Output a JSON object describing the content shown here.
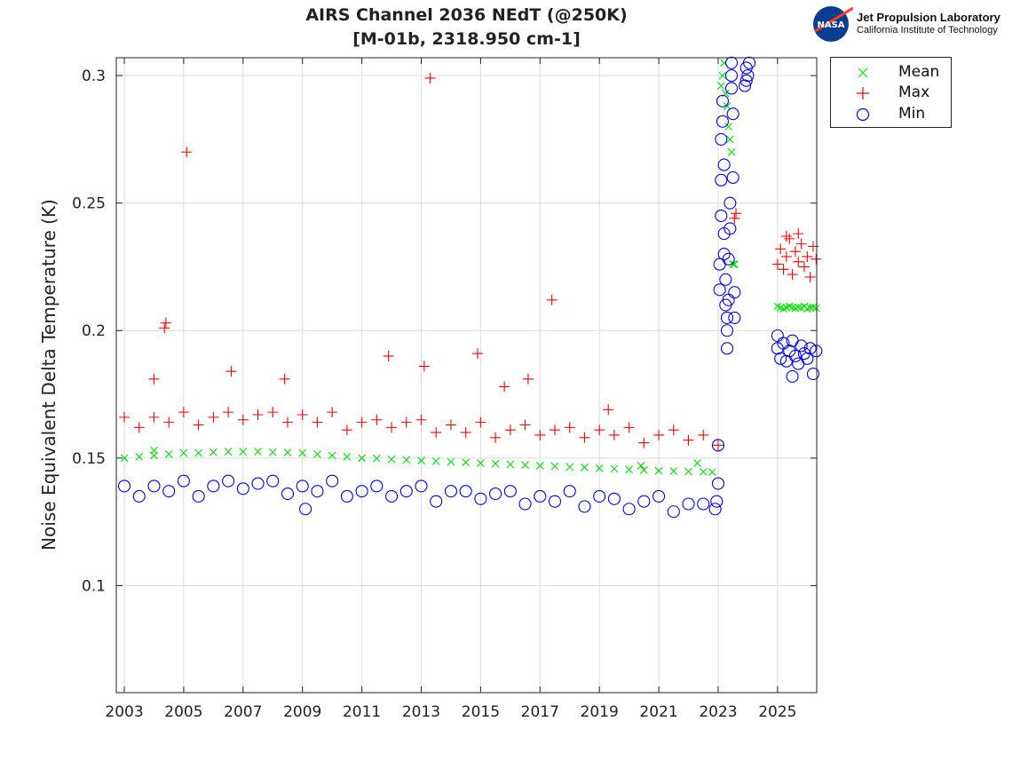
{
  "logo": {
    "line1": "Jet Propulsion Laboratory",
    "line2": "California Institute of Technology",
    "badge": "NASA"
  },
  "chart_data": {
    "type": "scatter",
    "title": [
      "AIRS Channel 2036 NEdT (@250K)",
      "[M-01b, 2318.950 cm-1]"
    ],
    "xlabel": "",
    "ylabel": "Noise Equivalent Delta Temperature (K)",
    "xlim": [
      2002.73,
      2026.32
    ],
    "ylim": [
      0.058,
      0.307
    ],
    "xticks": [
      2003,
      2005,
      2007,
      2009,
      2011,
      2013,
      2015,
      2017,
      2019,
      2021,
      2023,
      2025
    ],
    "xtick_labels": [
      "2003",
      "2005",
      "2007",
      "2009",
      "2011",
      "2013",
      "2015",
      "2017",
      "2019",
      "2021",
      "2023",
      "2025"
    ],
    "yticks": [
      0.1,
      0.15,
      0.2,
      0.25,
      0.3
    ],
    "ytick_labels": [
      "0.1",
      "0.15",
      "0.2",
      "0.25",
      "0.3"
    ],
    "grid": true,
    "legend": "outside-top-right",
    "series": [
      {
        "name": "Mean",
        "marker": "x",
        "color": "#00e000",
        "points": [
          [
            2003.0,
            0.15
          ],
          [
            2003.5,
            0.1505
          ],
          [
            2004.0,
            0.151
          ],
          [
            2004.5,
            0.1515
          ],
          [
            2005.0,
            0.152
          ],
          [
            2005.5,
            0.152
          ],
          [
            2006.0,
            0.1523
          ],
          [
            2006.5,
            0.1525
          ],
          [
            2007.0,
            0.1525
          ],
          [
            2007.5,
            0.1525
          ],
          [
            2008.0,
            0.1523
          ],
          [
            2008.5,
            0.1522
          ],
          [
            2009.0,
            0.152
          ],
          [
            2009.5,
            0.1515
          ],
          [
            2010.0,
            0.151
          ],
          [
            2010.5,
            0.1505
          ],
          [
            2011.0,
            0.15
          ],
          [
            2011.5,
            0.1498
          ],
          [
            2012.0,
            0.1495
          ],
          [
            2012.5,
            0.1493
          ],
          [
            2013.0,
            0.149
          ],
          [
            2013.5,
            0.1488
          ],
          [
            2014.0,
            0.1485
          ],
          [
            2014.5,
            0.1483
          ],
          [
            2015.0,
            0.148
          ],
          [
            2015.5,
            0.1478
          ],
          [
            2016.0,
            0.1475
          ],
          [
            2016.5,
            0.1473
          ],
          [
            2017.0,
            0.147
          ],
          [
            2017.5,
            0.1468
          ],
          [
            2018.0,
            0.1465
          ],
          [
            2018.5,
            0.1463
          ],
          [
            2019.0,
            0.146
          ],
          [
            2019.5,
            0.1458
          ],
          [
            2020.0,
            0.1455
          ],
          [
            2020.5,
            0.1453
          ],
          [
            2021.0,
            0.145
          ],
          [
            2021.5,
            0.1449
          ],
          [
            2022.0,
            0.1447
          ],
          [
            2022.5,
            0.1446
          ],
          [
            2022.8,
            0.1445
          ],
          [
            2020.4,
            0.147
          ],
          [
            2022.3,
            0.148
          ],
          [
            2004.0,
            0.153
          ],
          [
            2023.1,
            0.296
          ],
          [
            2023.15,
            0.3
          ],
          [
            2023.2,
            0.305
          ],
          [
            2023.25,
            0.293
          ],
          [
            2023.3,
            0.288
          ],
          [
            2023.35,
            0.28
          ],
          [
            2023.4,
            0.275
          ],
          [
            2023.45,
            0.27
          ],
          [
            2023.5,
            0.226
          ],
          [
            2023.55,
            0.226
          ],
          [
            2025.0,
            0.2095
          ],
          [
            2025.1,
            0.209
          ],
          [
            2025.2,
            0.2085
          ],
          [
            2025.3,
            0.209
          ],
          [
            2025.4,
            0.2095
          ],
          [
            2025.5,
            0.209
          ],
          [
            2025.6,
            0.2088
          ],
          [
            2025.7,
            0.2092
          ],
          [
            2025.8,
            0.209
          ],
          [
            2025.9,
            0.2095
          ],
          [
            2026.0,
            0.2085
          ],
          [
            2026.1,
            0.209
          ],
          [
            2026.2,
            0.2092
          ],
          [
            2026.3,
            0.2088
          ]
        ]
      },
      {
        "name": "Max",
        "marker": "+",
        "color": "#ff0000",
        "points": [
          [
            2003.0,
            0.166
          ],
          [
            2003.5,
            0.162
          ],
          [
            2004.0,
            0.166
          ],
          [
            2004.5,
            0.164
          ],
          [
            2005.0,
            0.168
          ],
          [
            2005.5,
            0.163
          ],
          [
            2006.0,
            0.166
          ],
          [
            2006.5,
            0.168
          ],
          [
            2007.0,
            0.165
          ],
          [
            2007.5,
            0.167
          ],
          [
            2008.0,
            0.168
          ],
          [
            2008.5,
            0.164
          ],
          [
            2009.0,
            0.167
          ],
          [
            2009.5,
            0.164
          ],
          [
            2010.0,
            0.168
          ],
          [
            2010.5,
            0.161
          ],
          [
            2011.0,
            0.164
          ],
          [
            2011.5,
            0.165
          ],
          [
            2012.0,
            0.162
          ],
          [
            2012.5,
            0.164
          ],
          [
            2013.0,
            0.165
          ],
          [
            2013.5,
            0.16
          ],
          [
            2014.0,
            0.163
          ],
          [
            2014.5,
            0.16
          ],
          [
            2015.0,
            0.164
          ],
          [
            2015.5,
            0.158
          ],
          [
            2016.0,
            0.161
          ],
          [
            2016.5,
            0.163
          ],
          [
            2017.0,
            0.159
          ],
          [
            2017.5,
            0.161
          ],
          [
            2018.0,
            0.162
          ],
          [
            2018.5,
            0.158
          ],
          [
            2019.0,
            0.161
          ],
          [
            2019.5,
            0.159
          ],
          [
            2020.0,
            0.162
          ],
          [
            2020.5,
            0.156
          ],
          [
            2021.0,
            0.159
          ],
          [
            2021.5,
            0.161
          ],
          [
            2022.0,
            0.157
          ],
          [
            2022.5,
            0.159
          ],
          [
            2004.0,
            0.181
          ],
          [
            2004.35,
            0.201
          ],
          [
            2004.4,
            0.203
          ],
          [
            2005.1,
            0.27
          ],
          [
            2006.6,
            0.184
          ],
          [
            2008.4,
            0.181
          ],
          [
            2011.9,
            0.19
          ],
          [
            2013.1,
            0.186
          ],
          [
            2013.3,
            0.299
          ],
          [
            2014.9,
            0.191
          ],
          [
            2015.8,
            0.178
          ],
          [
            2016.6,
            0.181
          ],
          [
            2017.4,
            0.212
          ],
          [
            2019.3,
            0.169
          ],
          [
            2023.55,
            0.244
          ],
          [
            2023.6,
            0.246
          ],
          [
            2023.0,
            0.155
          ],
          [
            2025.0,
            0.226
          ],
          [
            2025.1,
            0.232
          ],
          [
            2025.2,
            0.224
          ],
          [
            2025.3,
            0.229
          ],
          [
            2025.4,
            0.236
          ],
          [
            2025.5,
            0.222
          ],
          [
            2025.6,
            0.231
          ],
          [
            2025.7,
            0.227
          ],
          [
            2025.8,
            0.234
          ],
          [
            2025.9,
            0.225
          ],
          [
            2026.0,
            0.229
          ],
          [
            2026.1,
            0.221
          ],
          [
            2026.2,
            0.233
          ],
          [
            2026.3,
            0.228
          ],
          [
            2025.3,
            0.237
          ],
          [
            2025.7,
            0.238
          ]
        ]
      },
      {
        "name": "Min",
        "marker": "o",
        "color": "#0000ee",
        "points": [
          [
            2003.0,
            0.139
          ],
          [
            2003.5,
            0.135
          ],
          [
            2004.0,
            0.139
          ],
          [
            2004.5,
            0.137
          ],
          [
            2005.0,
            0.141
          ],
          [
            2005.5,
            0.135
          ],
          [
            2006.0,
            0.139
          ],
          [
            2006.5,
            0.141
          ],
          [
            2007.0,
            0.138
          ],
          [
            2007.5,
            0.14
          ],
          [
            2008.0,
            0.141
          ],
          [
            2008.5,
            0.136
          ],
          [
            2009.0,
            0.139
          ],
          [
            2009.5,
            0.137
          ],
          [
            2010.0,
            0.141
          ],
          [
            2010.5,
            0.135
          ],
          [
            2011.0,
            0.137
          ],
          [
            2011.5,
            0.139
          ],
          [
            2012.0,
            0.135
          ],
          [
            2012.5,
            0.137
          ],
          [
            2013.0,
            0.139
          ],
          [
            2013.5,
            0.133
          ],
          [
            2014.0,
            0.137
          ],
          [
            2014.5,
            0.137
          ],
          [
            2015.0,
            0.134
          ],
          [
            2015.5,
            0.136
          ],
          [
            2016.0,
            0.137
          ],
          [
            2016.5,
            0.132
          ],
          [
            2017.0,
            0.135
          ],
          [
            2017.5,
            0.133
          ],
          [
            2018.0,
            0.137
          ],
          [
            2018.5,
            0.131
          ],
          [
            2019.0,
            0.135
          ],
          [
            2019.5,
            0.134
          ],
          [
            2020.0,
            0.13
          ],
          [
            2020.5,
            0.133
          ],
          [
            2021.0,
            0.135
          ],
          [
            2021.5,
            0.129
          ],
          [
            2022.0,
            0.132
          ],
          [
            2022.5,
            0.132
          ],
          [
            2009.1,
            0.13
          ],
          [
            2022.9,
            0.13
          ],
          [
            2022.95,
            0.133
          ],
          [
            2023.0,
            0.14
          ],
          [
            2023.0,
            0.155
          ],
          [
            2023.05,
            0.216
          ],
          [
            2023.05,
            0.226
          ],
          [
            2023.1,
            0.245
          ],
          [
            2023.1,
            0.259
          ],
          [
            2023.1,
            0.275
          ],
          [
            2023.15,
            0.29
          ],
          [
            2023.15,
            0.282
          ],
          [
            2023.2,
            0.265
          ],
          [
            2023.2,
            0.238
          ],
          [
            2023.2,
            0.23
          ],
          [
            2023.25,
            0.22
          ],
          [
            2023.25,
            0.21
          ],
          [
            2023.3,
            0.205
          ],
          [
            2023.3,
            0.193
          ],
          [
            2023.3,
            0.2
          ],
          [
            2023.35,
            0.212
          ],
          [
            2023.35,
            0.228
          ],
          [
            2023.4,
            0.24
          ],
          [
            2023.4,
            0.25
          ],
          [
            2023.45,
            0.3
          ],
          [
            2023.45,
            0.305
          ],
          [
            2023.45,
            0.295
          ],
          [
            2023.5,
            0.285
          ],
          [
            2023.5,
            0.26
          ],
          [
            2023.55,
            0.215
          ],
          [
            2023.55,
            0.205
          ],
          [
            2023.9,
            0.296
          ],
          [
            2023.95,
            0.298
          ],
          [
            2023.95,
            0.303
          ],
          [
            2024.0,
            0.3
          ],
          [
            2024.05,
            0.305
          ],
          [
            2025.0,
            0.193
          ],
          [
            2025.1,
            0.189
          ],
          [
            2025.2,
            0.195
          ],
          [
            2025.3,
            0.188
          ],
          [
            2025.4,
            0.192
          ],
          [
            2025.5,
            0.196
          ],
          [
            2025.6,
            0.19
          ],
          [
            2025.7,
            0.187
          ],
          [
            2025.8,
            0.194
          ],
          [
            2025.9,
            0.191
          ],
          [
            2026.0,
            0.189
          ],
          [
            2026.1,
            0.193
          ],
          [
            2026.2,
            0.183
          ],
          [
            2026.3,
            0.192
          ],
          [
            2025.0,
            0.198
          ],
          [
            2025.5,
            0.182
          ]
        ]
      }
    ]
  }
}
